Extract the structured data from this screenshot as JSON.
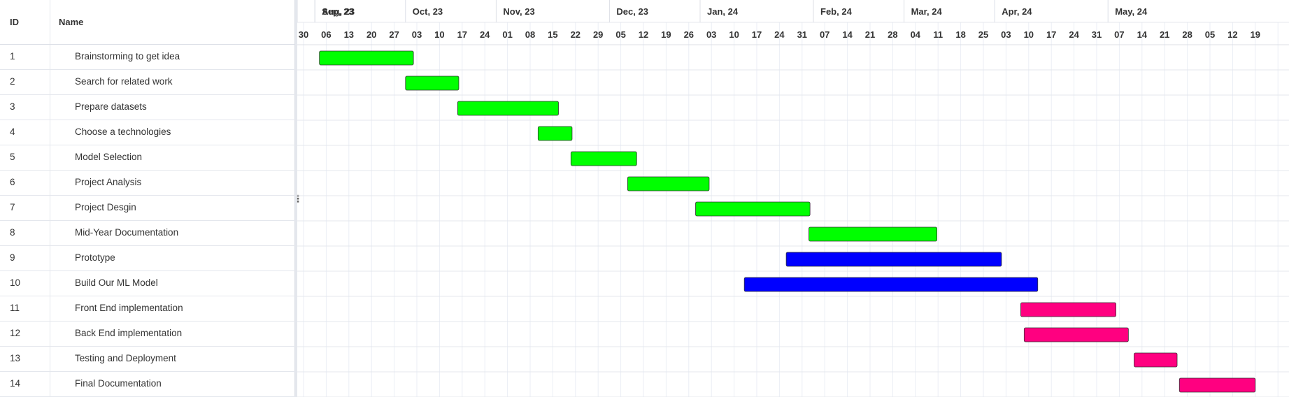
{
  "grid": {
    "columns": {
      "id": "ID",
      "name": "Name"
    }
  },
  "chart_data": {
    "type": "gantt",
    "timeline": {
      "months": [
        "Aug, 23",
        "Sep, 23",
        "Oct, 23",
        "Nov, 23",
        "Dec, 23",
        "Jan, 24",
        "Feb, 24",
        "Mar, 24",
        "Apr, 24",
        "May, 24"
      ],
      "weeks": [
        "30",
        "06",
        "13",
        "20",
        "27",
        "03",
        "10",
        "17",
        "24",
        "01",
        "08",
        "15",
        "22",
        "29",
        "05",
        "12",
        "19",
        "26",
        "03",
        "10",
        "17",
        "24",
        "31",
        "07",
        "14",
        "21",
        "28",
        "04",
        "11",
        "18",
        "25",
        "03",
        "10",
        "17",
        "24",
        "31",
        "07",
        "14",
        "21",
        "28",
        "05",
        "12",
        "19"
      ]
    },
    "colors": {
      "green": "#00ff00",
      "blue": "#0000ff",
      "pink": "#ff0080"
    },
    "tasks": [
      {
        "id": "1",
        "name": "Brainstorming to get idea",
        "start": 0.7,
        "end": 4.85,
        "color": "green"
      },
      {
        "id": "2",
        "name": "Search for related work",
        "start": 4.5,
        "end": 6.85,
        "color": "green"
      },
      {
        "id": "3",
        "name": "Prepare datasets",
        "start": 6.8,
        "end": 11.25,
        "color": "green"
      },
      {
        "id": "4",
        "name": "Choose a technologies",
        "start": 10.35,
        "end": 11.85,
        "color": "green"
      },
      {
        "id": "5",
        "name": "Model Selection",
        "start": 11.8,
        "end": 14.7,
        "color": "green"
      },
      {
        "id": "6",
        "name": "Project Analysis",
        "start": 14.3,
        "end": 17.9,
        "color": "green"
      },
      {
        "id": "7",
        "name": "Project Desgin",
        "start": 17.3,
        "end": 22.35,
        "color": "green"
      },
      {
        "id": "8",
        "name": "Mid-Year Documentation",
        "start": 22.3,
        "end": 27.95,
        "color": "green"
      },
      {
        "id": "9",
        "name": "Prototype",
        "start": 21.3,
        "end": 30.8,
        "color": "blue"
      },
      {
        "id": "10",
        "name": "Build Our ML Model",
        "start": 19.45,
        "end": 32.4,
        "color": "blue"
      },
      {
        "id": "11",
        "name": "Front End implementation",
        "start": 31.65,
        "end": 35.85,
        "color": "pink"
      },
      {
        "id": "12",
        "name": "Back End implementation",
        "start": 31.8,
        "end": 36.4,
        "color": "pink"
      },
      {
        "id": "13",
        "name": "Testing and Deployment",
        "start": 36.65,
        "end": 38.55,
        "color": "pink"
      },
      {
        "id": "14",
        "name": "Final Documentation",
        "start": 38.65,
        "end": 42.0,
        "color": "pink"
      }
    ]
  }
}
